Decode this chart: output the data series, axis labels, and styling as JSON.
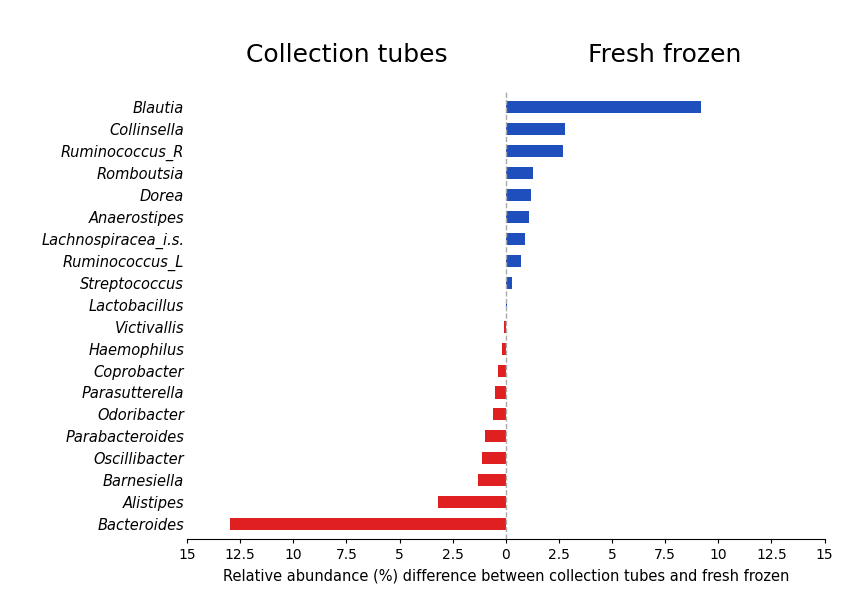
{
  "taxa": [
    "Blautia",
    "Collinsella",
    "Ruminococcus_R",
    "Romboutsia",
    "Dorea",
    "Anaerostipes",
    "Lachnospiracea_i.s.",
    "Ruminococcus_L",
    "Streptococcus",
    "Lactobacillus",
    "Victivallis",
    "Haemophilus",
    "Coprobacter",
    "Parasutterella",
    "Odoribacter",
    "Parabacteroides",
    "Oscillibacter",
    "Barnesiella",
    "Alistipes",
    "Bacteroides"
  ],
  "values": [
    9.2,
    2.8,
    2.7,
    1.3,
    1.2,
    1.1,
    0.9,
    0.7,
    0.3,
    0.08,
    -0.08,
    -0.2,
    -0.35,
    -0.5,
    -0.6,
    -1.0,
    -1.1,
    -1.3,
    -3.2,
    -13.0
  ],
  "positive_color": "#1f4fbd",
  "negative_color": "#e02020",
  "dashed_line_color": "#aaaaaa",
  "title_left": "Collection tubes",
  "title_right": "Fresh frozen",
  "xlabel": "Relative abundance (%) difference between collection tubes and fresh frozen",
  "xlim": [
    -15,
    15
  ],
  "xticks": [
    -15,
    -12.5,
    -10,
    -7.5,
    -5,
    -2.5,
    0,
    2.5,
    5,
    7.5,
    10,
    12.5,
    15
  ],
  "xticklabels": [
    "15",
    "12.5",
    "10",
    "7.5",
    "5",
    "2.5",
    "0",
    "2.5",
    "5",
    "7.5",
    "10",
    "12.5",
    "15"
  ],
  "bar_height": 0.55,
  "title_fontsize": 18,
  "label_fontsize": 10.5,
  "tick_fontsize": 10,
  "xlabel_fontsize": 10.5
}
